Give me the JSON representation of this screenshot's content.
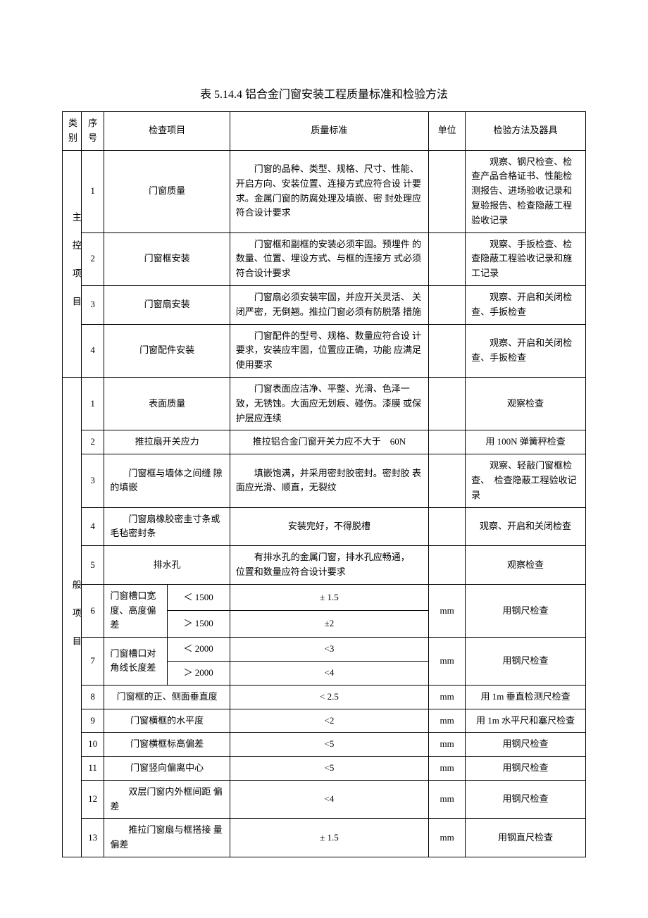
{
  "title": "表 5.14.4 铝合金门窗安装工程质量标准和检验方法",
  "headers": {
    "category": "类 别",
    "seq": "序 号",
    "item": "检查项目",
    "standard": "质量标准",
    "unit": "单位",
    "method": "检验方法及器具"
  },
  "groups": [
    {
      "cat": "主 控 项 目",
      "rows": [
        {
          "seq": "1",
          "item": "门窗质量",
          "standard": "　　门窗的品种、类型、规格、尺寸、性能、开启方向、安装位置、连接方式应符合设 计要求。金属门窗的防腐处理及填嵌、密 封处理应符合设计要求",
          "unit": "",
          "method": "　　观察、钢尺检查、检查产品合格证书、性能检测报告、进场验收记录和复验报告、检查隐蔽工程验收记录"
        },
        {
          "seq": "2",
          "item": "门窗框安装",
          "standard": "　　门窗框和副框的安装必须牢固。预埋件 的数量、位置、埋设方式、与框的连接方 式必须符合设计要求",
          "unit": "",
          "method": "　　观察、手扳检查、检查隐蔽工程验收记录和施 工记录"
        },
        {
          "seq": "3",
          "item": "门窗扇安装",
          "standard": "　　门窗扇必须安装牢固，并应开关灵活、 关闭严密，无倒翘。推拉门窗必须有防脱落 措施",
          "unit": "",
          "method": "　　观察、开启和关闭检 查、手扳检查"
        },
        {
          "seq": "4",
          "item": "门窗配件安装",
          "standard": "　　门窗配件的型号、规格、数量应符合设 计要求，安装应牢固，位置应正确，功能 应满足使用要求",
          "unit": "",
          "method": "　　观察、开启和关闭检 查、手扳检查"
        }
      ]
    },
    {
      "cat": "般 项 目",
      "rows_simple": [
        {
          "seq": "1",
          "item": "表面质量",
          "standard": "　　门窗表面应洁净、平整、光滑、色泽一 致，无锈蚀。大面应无划痕、碰伤。漆膜 或保护层应连续",
          "unit": "",
          "method": "观察检查"
        },
        {
          "seq": "2",
          "item": "推拉扇开关应力",
          "standard": "推拉铝合金门窗开关力应不大于　60N",
          "unit": "",
          "method": "用 100N 弹簧秤检查"
        },
        {
          "seq": "3",
          "item": "　　门窗框与墙体之间缝 隙的填嵌",
          "standard": "　　填嵌饱满，并采用密封胶密封。密封胶 表面应光滑、顺直，无裂纹",
          "unit": "",
          "method": "　　观察、轻敲门窗框检查、　检查隐蔽工程验收记录"
        },
        {
          "seq": "4",
          "item": "　　门窗扇橡胶密圭寸条或毛毡密封条",
          "standard": "安装完好，不得脱槽",
          "unit": "",
          "method": "观察、开启和关闭检查"
        },
        {
          "seq": "5",
          "item": "排水孔",
          "standard": "　　有排水孔的金属门窗，排水孔应畅通，　位置和数量应符合设计要求",
          "unit": "",
          "method": "观察检查"
        }
      ],
      "rows_split": [
        {
          "seq": "6",
          "item_a": "门窗槽口宽 度、高度偏差",
          "subs": [
            {
              "sub": "＜ 1500",
              "std": "± 1.5"
            },
            {
              "sub": "＞ 1500",
              "std": "±2"
            }
          ],
          "unit": "mm",
          "method": "用钢尺检查"
        },
        {
          "seq": "7",
          "item_a": "门窗槽口对 角线长度差",
          "subs": [
            {
              "sub": "＜ 2000",
              "std": "<3"
            },
            {
              "sub": "＞ 2000",
              "std": "<4"
            }
          ],
          "unit": "mm",
          "method": "用钢尺检查"
        }
      ],
      "rows_tail": [
        {
          "seq": "8",
          "item": "门窗框的正、侧面垂直度",
          "std": "< 2.5",
          "unit": "mm",
          "method": "用 1m 垂直检测尺检查"
        },
        {
          "seq": "9",
          "item": "门窗横框的水平度",
          "std": "<2",
          "unit": "mm",
          "method": "用 1m 水平尺和塞尺检查"
        },
        {
          "seq": "10",
          "item": "门窗横框标高偏差",
          "std": "<5",
          "unit": "mm",
          "method": "用钢尺检查"
        },
        {
          "seq": "11",
          "item": "门窗竖向偏离中心",
          "std": "<5",
          "unit": "mm",
          "method": "用钢尺检查"
        },
        {
          "seq": "12",
          "item": "　　双层门窗内外框间距 偏差",
          "std": "<4",
          "unit": "mm",
          "method": "用钢尺检查"
        },
        {
          "seq": "13",
          "item": "　　推拉门窗扇与框搭接 量偏差",
          "std": "± 1.5",
          "unit": "mm",
          "method": "用钢直尺检查"
        }
      ]
    }
  ]
}
